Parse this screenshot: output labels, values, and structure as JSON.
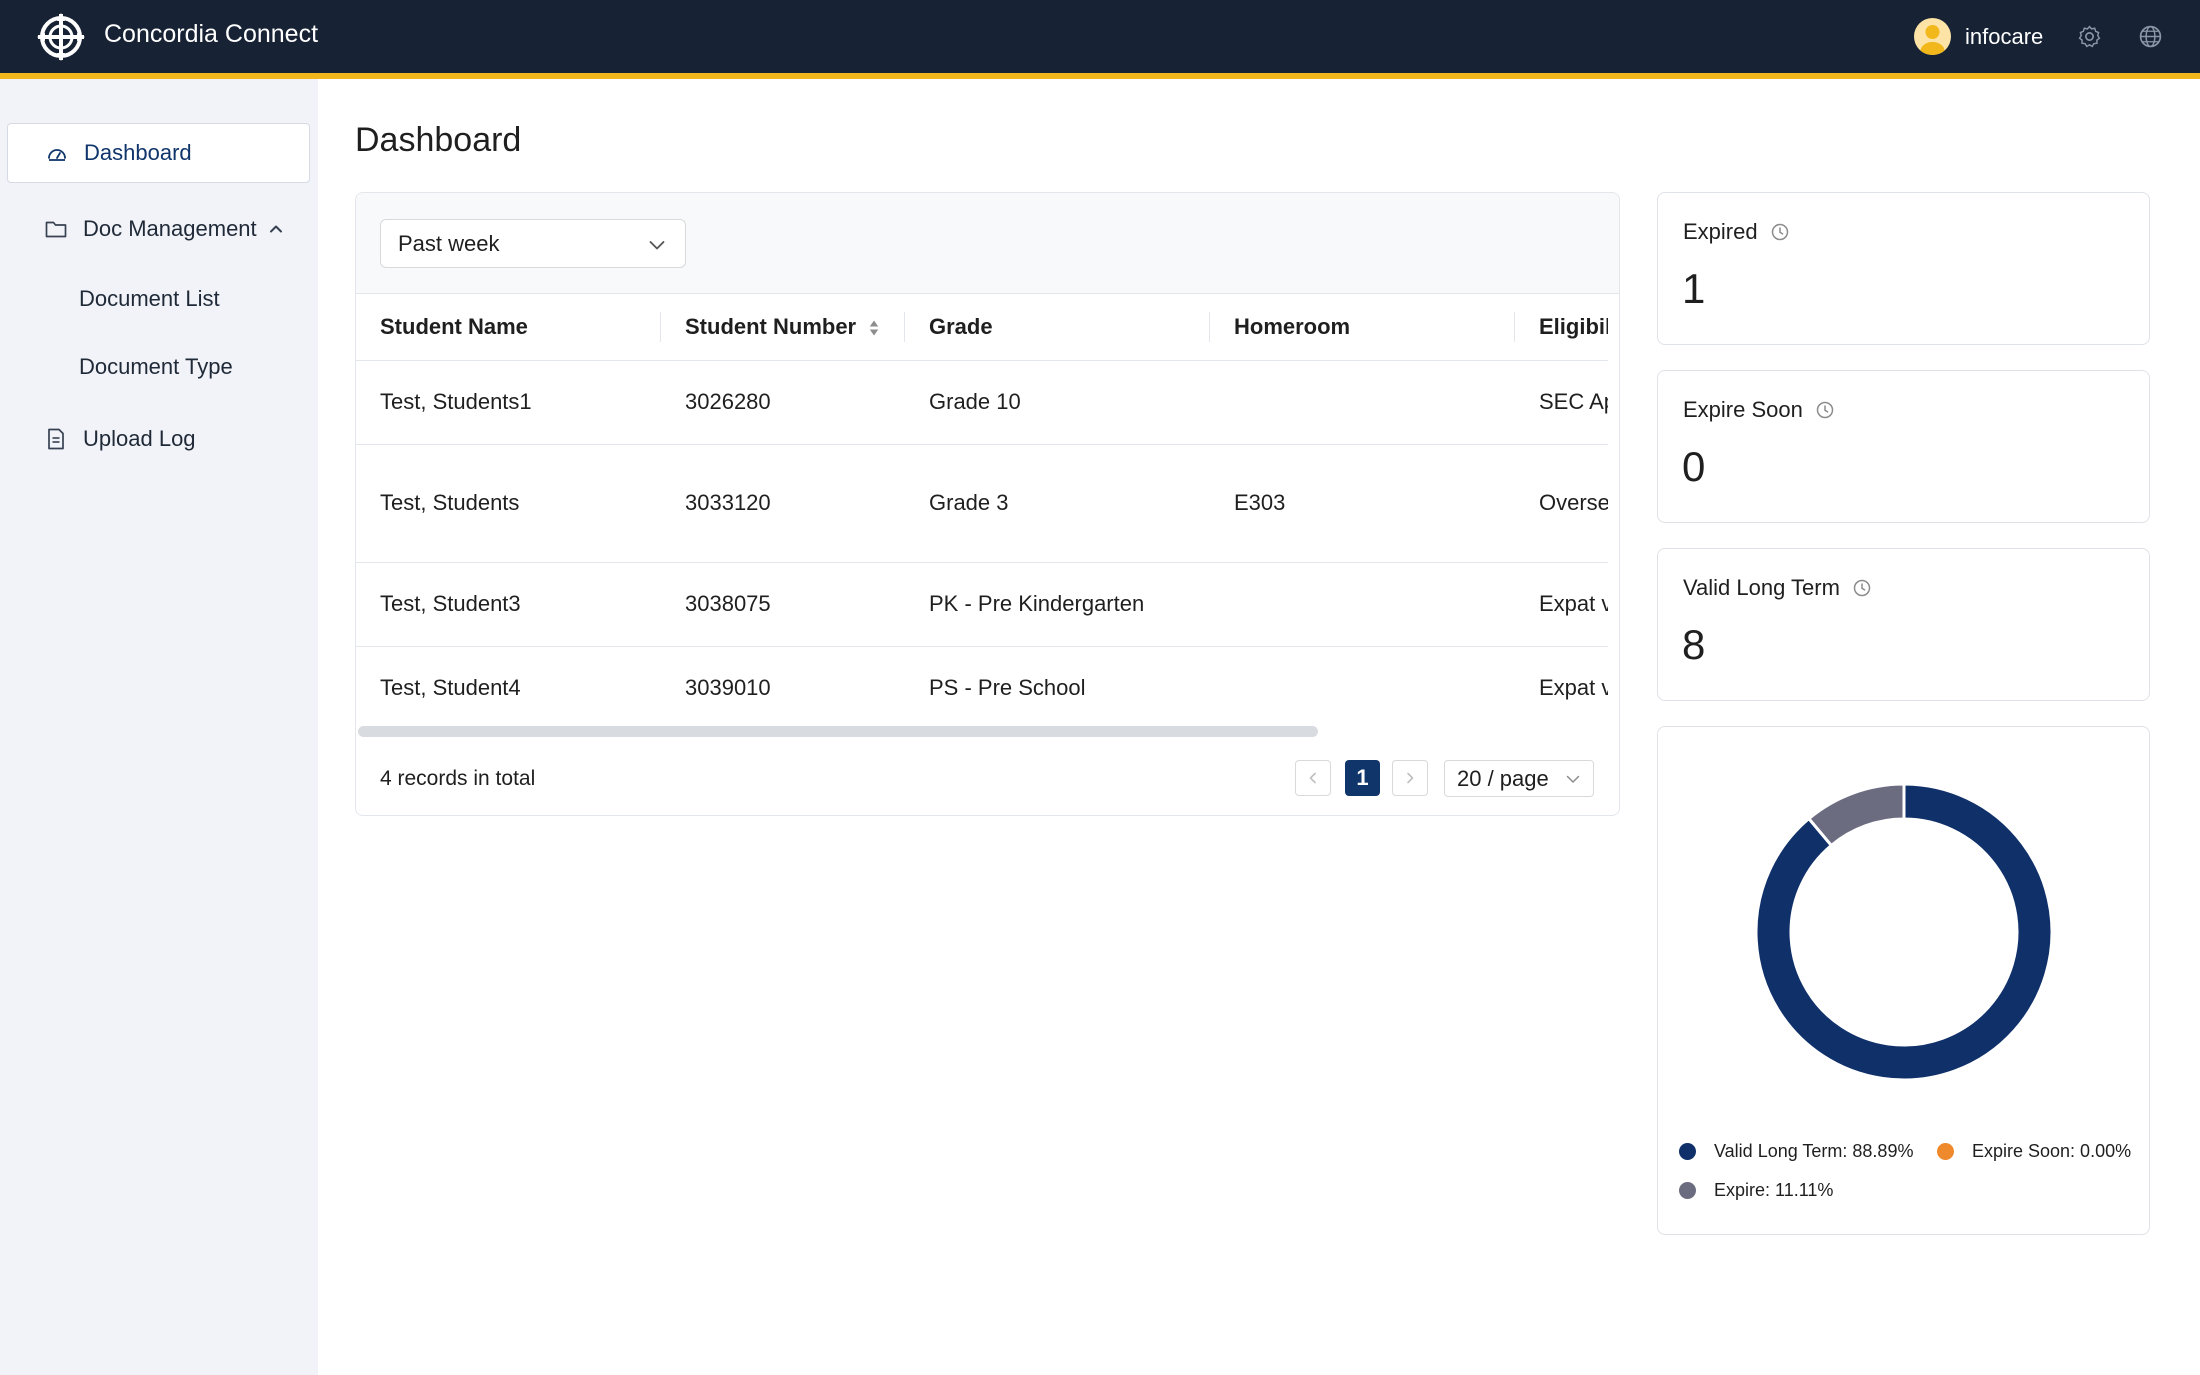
{
  "header": {
    "brand": "Concordia Connect",
    "user_name": "infocare"
  },
  "sidebar": {
    "items": [
      {
        "label": "Dashboard",
        "icon": "dashboard-icon",
        "active": true
      },
      {
        "label": "Doc Management",
        "icon": "folder-icon",
        "expanded": true
      },
      {
        "label": "Document List"
      },
      {
        "label": "Document Type"
      },
      {
        "label": "Upload Log",
        "icon": "file-icon"
      }
    ]
  },
  "main": {
    "title": "Dashboard",
    "filter": {
      "value": "Past week"
    },
    "table": {
      "columns": [
        "Student Name",
        "Student Number",
        "Grade",
        "Homeroom",
        "Eligibili"
      ],
      "rows": [
        [
          "Test, Students1",
          "3026280",
          "Grade 10",
          "",
          "SEC Ap"
        ],
        [
          "Test, Students",
          "3033120",
          "Grade 3",
          "E303",
          "Overse record"
        ],
        [
          "Test, Student3",
          "3038075",
          "PK - Pre Kindergarten",
          "",
          "Expat v"
        ],
        [
          "Test, Student4",
          "3039010",
          "PS - Pre School",
          "",
          "Expat v"
        ]
      ]
    },
    "pagination": {
      "total_text": "4 records in total",
      "current_page": "1",
      "page_size": "20 / page"
    }
  },
  "stats": [
    {
      "label": "Expired",
      "value": "1"
    },
    {
      "label": "Expire Soon",
      "value": "0"
    },
    {
      "label": "Valid Long Term",
      "value": "8"
    }
  ],
  "chart_data": {
    "type": "pie",
    "categories": [
      "Valid Long Term",
      "Expire Soon",
      "Expire"
    ],
    "values": [
      88.89,
      0.0,
      11.11
    ],
    "colors": [
      "#10306a",
      "#ee8a2c",
      "#6b6c80"
    ],
    "legend": [
      "Valid Long Term: 88.89%",
      "Expire Soon: 0.00%",
      "Expire: 11.11%"
    ],
    "legend_position": "bottom"
  },
  "colors": {
    "topbar": "#172335",
    "accent": "#f2b71a",
    "primary": "#10356b",
    "sidebar_bg": "#f1f3f8"
  }
}
